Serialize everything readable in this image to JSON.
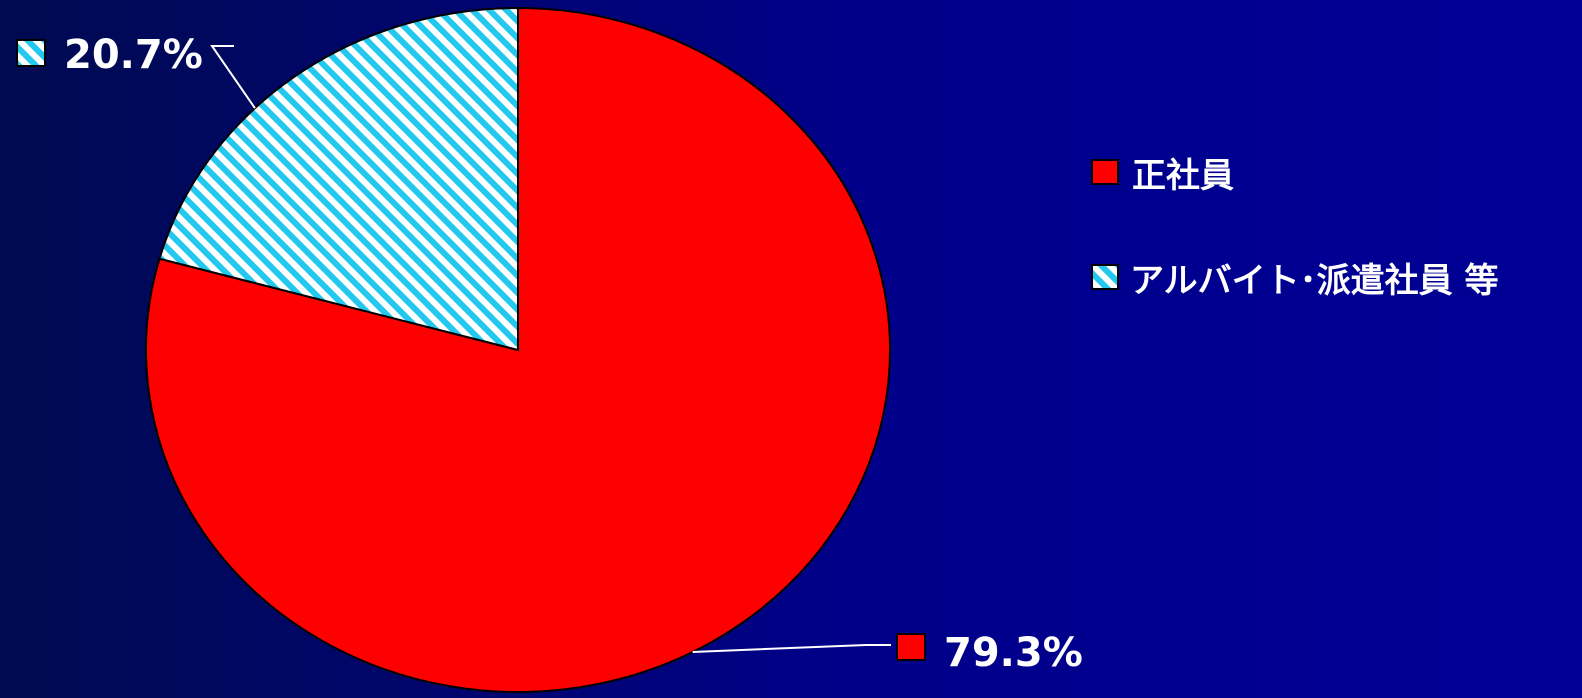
{
  "chart_data": {
    "type": "pie",
    "categories": [
      "正社員",
      "アルバイト･派遣社員 等"
    ],
    "values": [
      79.3,
      20.7
    ],
    "data_labels": [
      "79.3%",
      "20.7%"
    ],
    "colors": {
      "series_1": "#ff0000",
      "series_2_stripe": "#22c8ee",
      "series_2_base": "#ffffff"
    },
    "legend": {
      "placement": "right",
      "entries": [
        "正社員",
        "アルバイト･派遣社員 等"
      ]
    }
  }
}
